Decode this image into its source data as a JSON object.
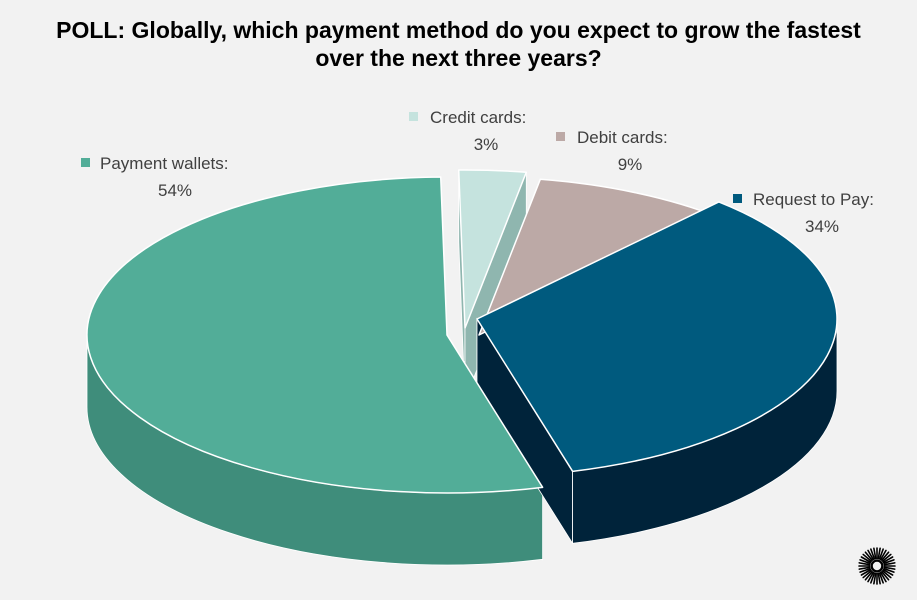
{
  "title_line1": "POLL: Globally, which payment method do you expect to grow the fastest",
  "title_line2": "over the next three years?",
  "chart_data": {
    "type": "pie",
    "title": "POLL: Globally, which payment method do you expect to grow the fastest over the next three years?",
    "three_d": true,
    "slices": [
      {
        "label": "Credit cards:",
        "value": 3,
        "pct_text": "3%",
        "color": "#c5e3de",
        "side": "#8fb6af"
      },
      {
        "label": "Debit cards:",
        "value": 9,
        "pct_text": "9%",
        "color": "#bca9a6",
        "side": "#7a6b69"
      },
      {
        "label": "Request to Pay:",
        "value": 34,
        "pct_text": "34%",
        "color": "#005a7e",
        "side": "#00233a"
      },
      {
        "label": "Payment wallets:",
        "value": 54,
        "pct_text": "54%",
        "color": "#52ad98",
        "side": "#3f8d7b"
      }
    ]
  }
}
